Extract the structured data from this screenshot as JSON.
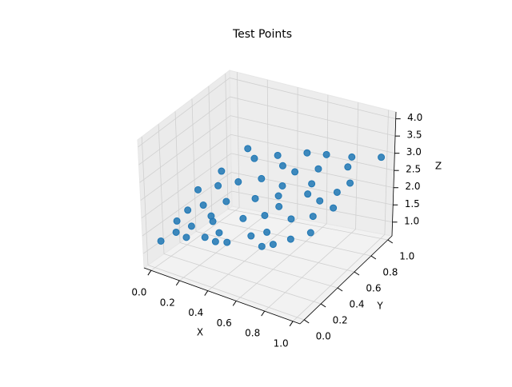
{
  "chart_data": {
    "type": "scatter3d",
    "title": "Test Points",
    "xlabel": "X",
    "ylabel": "Y",
    "zlabel": "Z",
    "color": "#1f77b4",
    "grid": true,
    "xlim": [
      -0.05,
      1.05
    ],
    "ylim": [
      -0.05,
      1.05
    ],
    "zlim": [
      0.6,
      4.2
    ],
    "xticks": [
      {
        "value": 0,
        "label": "0.0"
      },
      0.2,
      0.4,
      0.6,
      0.8,
      {
        "value": 1,
        "label": "1.0"
      }
    ],
    "yticks": [
      {
        "value": 0,
        "label": "0.0"
      },
      0.2,
      0.4,
      0.6,
      0.8,
      {
        "value": 1,
        "label": "1.0"
      }
    ],
    "zticks": [
      {
        "value": 1,
        "label": "1.0"
      },
      1.5,
      {
        "value": 2,
        "label": "2.0"
      },
      2.5,
      {
        "value": 3,
        "label": "3.0"
      },
      3.5,
      {
        "value": 4,
        "label": "4.0"
      }
    ],
    "x": [
      0.02,
      0.05,
      0.1,
      0.15,
      0.2,
      0.25,
      0.3,
      0.35,
      0.4,
      0.45,
      0.5,
      0.55,
      0.6,
      0.65,
      0.7,
      0.75,
      0.8,
      0.85,
      0.9,
      0.95,
      1.0,
      0.08,
      0.12,
      0.03,
      0.22,
      0.38,
      0.48,
      0.58,
      0.68,
      0.78,
      0.88,
      0.98,
      0.18,
      0.28,
      0.42,
      0.52,
      0.62,
      0.72,
      0.82,
      0.92,
      0.97,
      0.07,
      0.33,
      0.14,
      0.44,
      0.64,
      0.86,
      0.26,
      0.74,
      0.55
    ],
    "y": [
      0.05,
      0.2,
      0.1,
      0.35,
      0.05,
      0.6,
      0.2,
      0.9,
      0.1,
      0.45,
      0.02,
      0.75,
      0.3,
      0.95,
      0.15,
      0.55,
      0.05,
      0.85,
      0.35,
      0.7,
      0.98,
      0.7,
      0.95,
      0.5,
      0.85,
      0.65,
      0.25,
      0.5,
      0.8,
      0.3,
      0.12,
      0.45,
      0.15,
      0.4,
      0.02,
      0.95,
      0.1,
      0.65,
      0.95,
      0.6,
      0.2,
      0.3,
      0.05,
      0.55,
      0.8,
      0.4,
      0.5,
      0.25,
      0.02,
      0.6
    ],
    "z": [
      1.29,
      1.64,
      1.56,
      1.95,
      1.64,
      2.27,
      1.95,
      2.56,
      1.95,
      2.31,
      1.97,
      2.59,
      2.31,
      2.78,
      2.27,
      2.59,
      2.27,
      2.84,
      2.56,
      2.81,
      2.99,
      2.21,
      2.44,
      1.98,
      2.44,
      2.41,
      2.17,
      2.44,
      2.71,
      2.44,
      2.38,
      2.68,
      1.75,
      2.12,
      1.88,
      2.7,
      2.16,
      2.64,
      2.88,
      2.73,
      2.51,
      1.8,
      1.82,
      2.13,
      2.55,
      2.41,
      2.63,
      1.96,
      2.19,
      2.49
    ]
  }
}
